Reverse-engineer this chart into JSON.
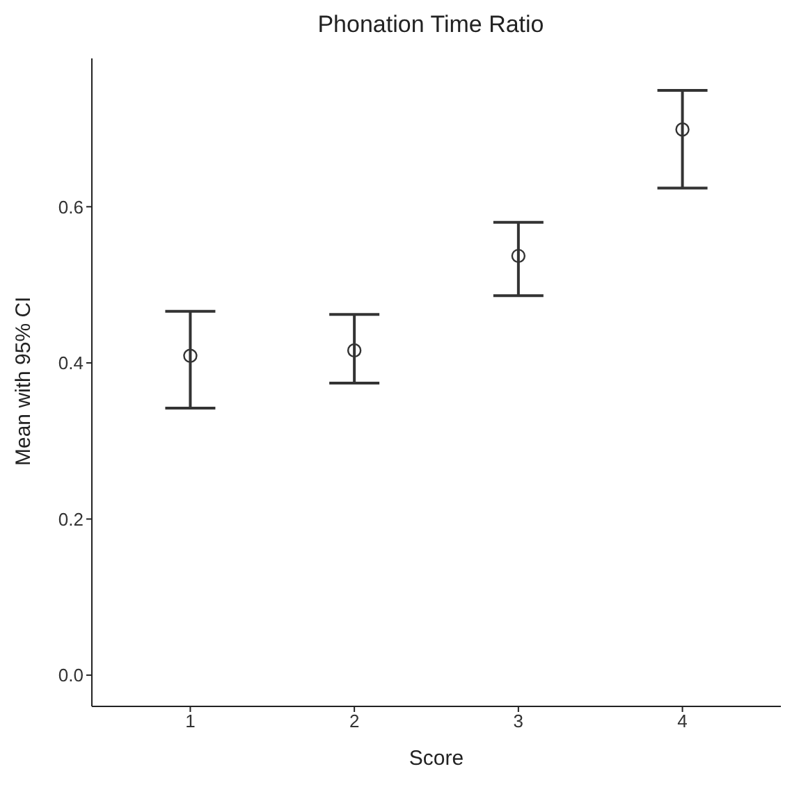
{
  "chart_data": {
    "type": "scatter",
    "title": "Phonation Time Ratio",
    "xlabel": "Score",
    "ylabel": "Mean with 95% CI",
    "categories": [
      "1",
      "2",
      "3",
      "4"
    ],
    "series": [
      {
        "color": "#333333",
        "values": [
          0.409,
          0.416,
          0.537,
          0.699
        ],
        "errors": [
          [
            0.342,
            0.466
          ],
          [
            0.374,
            0.462
          ],
          [
            0.486,
            0.58
          ],
          [
            0.624,
            0.749
          ]
        ]
      }
    ],
    "ylim": [
      -0.04,
      0.79
    ],
    "yticks": [
      {
        "value": 0,
        "label": "0.0"
      },
      0.2,
      0.4,
      0.6
    ],
    "grid": false,
    "legend": false,
    "marker": "circle"
  }
}
